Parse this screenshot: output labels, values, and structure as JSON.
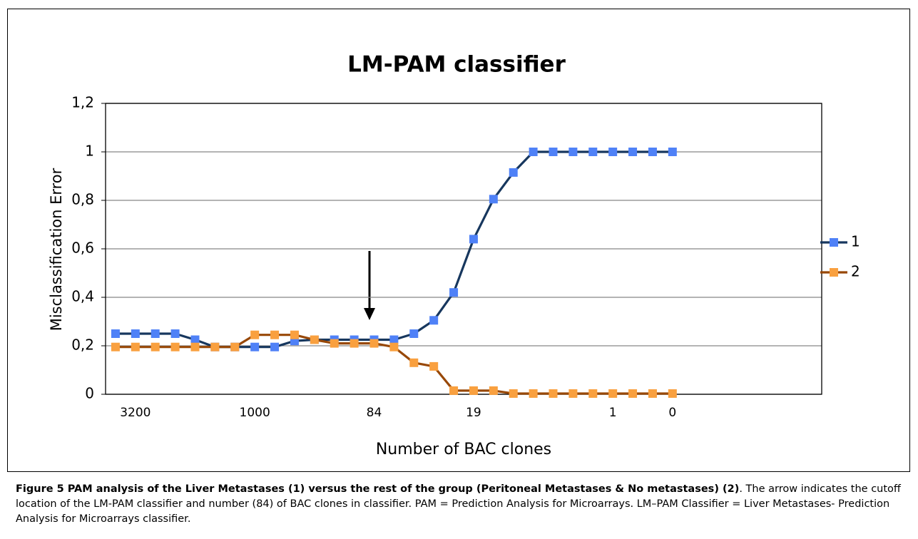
{
  "chart_data": {
    "type": "line",
    "title": "LM-PAM classifier",
    "x_label": "Number of BAC clones",
    "y_label": "Misclassification Error",
    "categories": [
      null,
      "3200",
      null,
      null,
      null,
      null,
      null,
      "1000",
      null,
      null,
      null,
      null,
      null,
      "84",
      null,
      null,
      null,
      null,
      "19",
      null,
      null,
      null,
      null,
      null,
      null,
      "1",
      null,
      null,
      "0",
      null,
      null,
      null,
      null,
      null,
      null,
      null
    ],
    "series": [
      {
        "name": "1",
        "color": "#17375e",
        "marker_color": "#4f81f7",
        "values": [
          0.25,
          0.25,
          0.25,
          0.25,
          0.225,
          0.195,
          0.195,
          0.195,
          0.195,
          0.22,
          0.225,
          0.225,
          0.225,
          0.225,
          0.225,
          0.25,
          0.305,
          0.42,
          0.64,
          0.805,
          0.915,
          1,
          1,
          1,
          1,
          1,
          1,
          1,
          1,
          null,
          null,
          null,
          null,
          null,
          null,
          null
        ]
      },
      {
        "name": "2",
        "color": "#984807",
        "marker_color": "#f9a03f",
        "values": [
          0.195,
          0.195,
          0.195,
          0.195,
          0.195,
          0.195,
          0.195,
          0.245,
          0.245,
          0.245,
          0.225,
          0.21,
          0.21,
          0.21,
          0.195,
          0.13,
          0.115,
          0.015,
          0.015,
          0.015,
          0.003,
          0.003,
          0.003,
          0.003,
          0.003,
          0.003,
          0.003,
          0.003,
          0.003,
          null,
          null,
          null,
          null,
          null,
          null,
          null
        ]
      }
    ],
    "ylim": [
      0,
      1.2
    ],
    "yticks": [
      0,
      {
        "value": 0.2,
        "label": "0,2"
      },
      {
        "value": 0.4,
        "label": "0,4"
      },
      {
        "value": 0.6,
        "label": "0,6"
      },
      {
        "value": 0.8,
        "label": "0,8"
      },
      1,
      {
        "value": 1.2,
        "label": "1,2"
      }
    ],
    "grid": true,
    "legend": "right"
  },
  "caption": {
    "bold": "Figure 5 PAM analysis of the Liver Metastases (1) versus the rest of the group (Peritoneal Metastases & No metastases) (2)",
    "text": ". The arrow indicates the cutoff location of the LM-PAM classifier and number (84) of BAC clones in classifier. PAM = Prediction Analysis for Microarrays. LM–PAM Classifier = Liver Metastases- Prediction Analysis for Microarrays classifier."
  }
}
